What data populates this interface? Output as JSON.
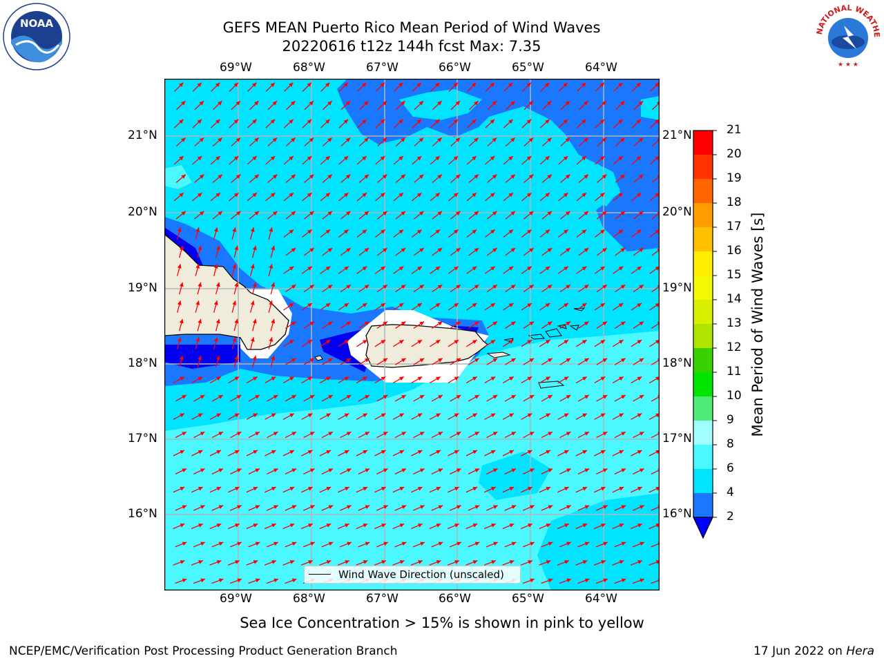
{
  "title": {
    "line1": "GEFS MEAN Puerto Rico Mean Period of Wind Waves",
    "line2": "20220616 t12z 144h fcst   Max: 7.35"
  },
  "axes": {
    "lon_labels": [
      "69°W",
      "68°W",
      "67°W",
      "66°W",
      "65°W",
      "64°W"
    ],
    "lat_labels": [
      "21°N",
      "20°N",
      "19°N",
      "18°N",
      "17°N",
      "16°N"
    ]
  },
  "legend": {
    "label": "Wind Wave Direction (unscaled)"
  },
  "colorbar": {
    "label": "Mean Period of Wind Waves [s]",
    "ticks": [
      "2",
      "4",
      "6",
      "8",
      "9",
      "10",
      "11",
      "12",
      "13",
      "14",
      "15",
      "16",
      "17",
      "18",
      "19",
      "20",
      "21"
    ],
    "colors": [
      "#0000ff",
      "#1a78ff",
      "#00e4ff",
      "#4cf8ff",
      "#a0ffff",
      "#4fec7a",
      "#00e400",
      "#39d200",
      "#aee400",
      "#d8f000",
      "#f3fa00",
      "#ffee00",
      "#ffc000",
      "#ff9c00",
      "#ff6600",
      "#ff3200",
      "#ff0000"
    ]
  },
  "map_colors": {
    "land": "#efecdc",
    "sea_base": "#00e4ff",
    "sea_light": "#4cf8ff",
    "sea_mid": "#1a78ff",
    "sea_dark": "#0000ee",
    "arrows": "#ff0000"
  },
  "bottom_note": "Sea Ice Concentration > 15% is shown in pink to yellow",
  "footer": {
    "left": "NCEP/EMC/Verification Post Processing Product Generation Branch",
    "date": "17 Jun 2022 on ",
    "host": "Hera"
  },
  "logos": {
    "left": "NOAA",
    "right": "NATIONAL WEATHER SERVICE"
  }
}
